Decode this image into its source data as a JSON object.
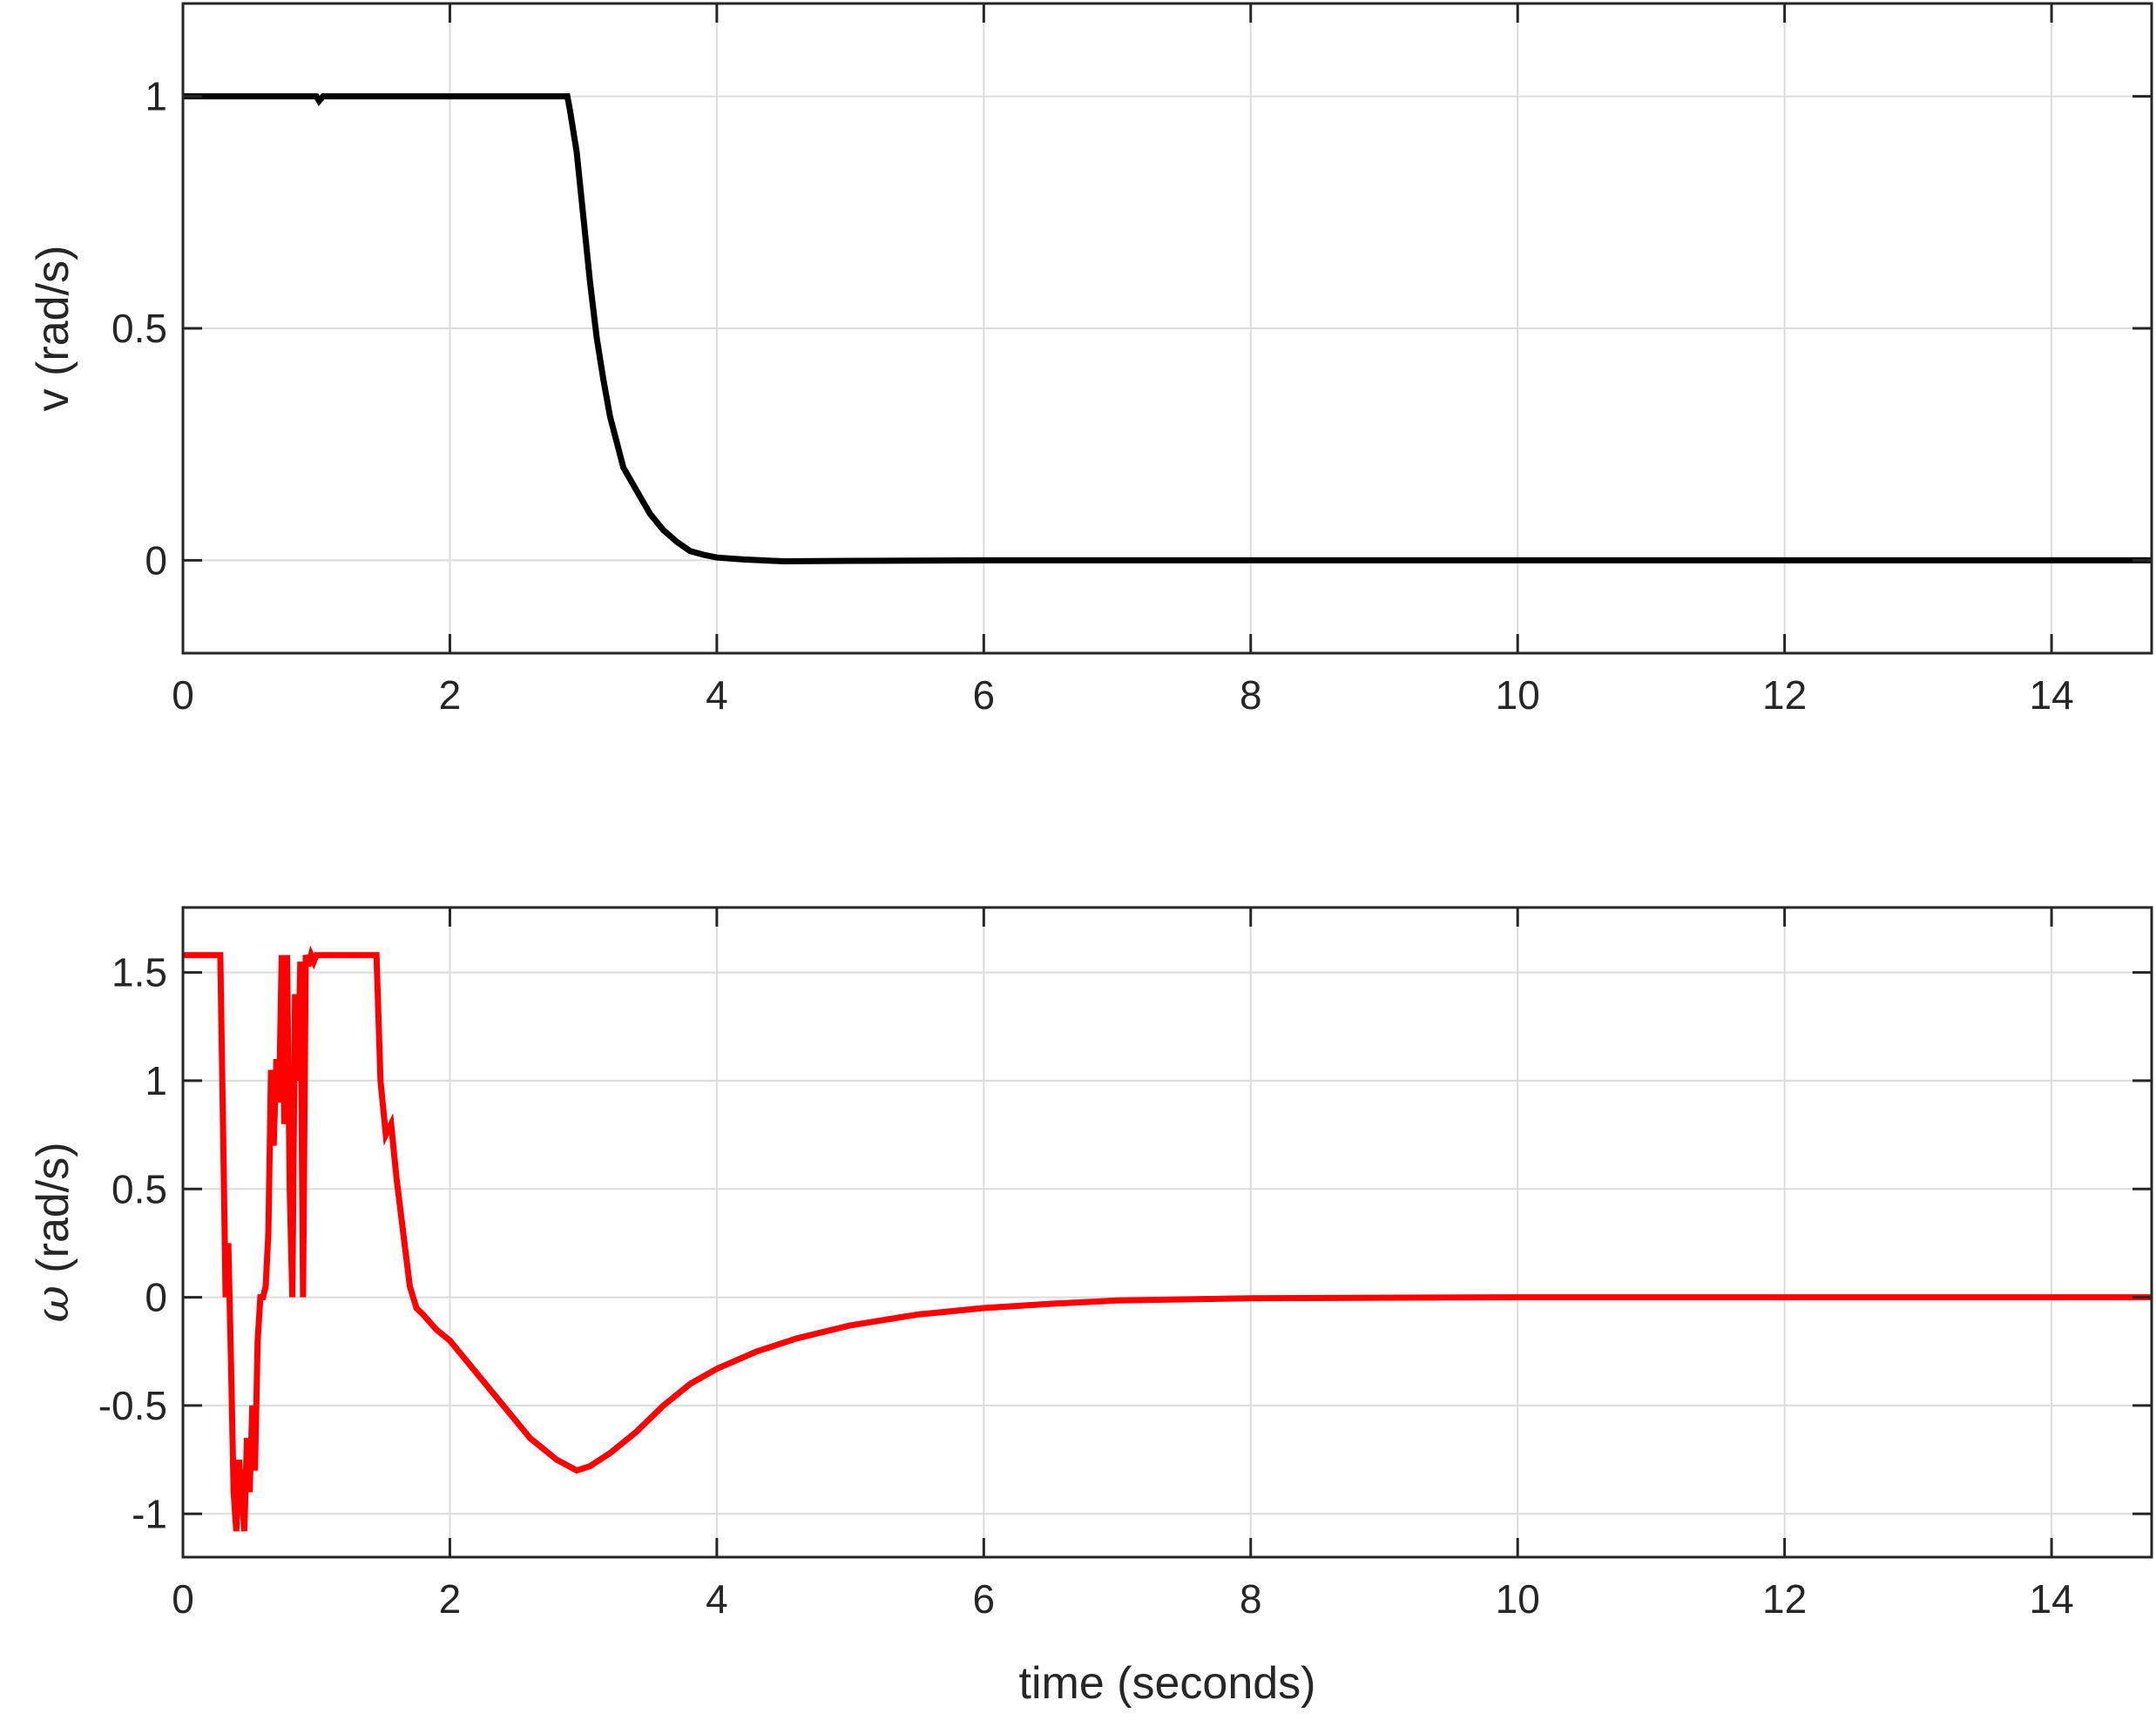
{
  "chart_data": [
    {
      "type": "line",
      "title": "",
      "xlabel": "",
      "ylabel": "v (rad/s)",
      "xlim": [
        0,
        14.75
      ],
      "ylim": [
        -0.2,
        1.2
      ],
      "xticks": [
        0,
        2,
        4,
        6,
        8,
        10,
        12,
        14
      ],
      "xtick_labels": [
        "0",
        "2",
        "4",
        "6",
        "8",
        "10",
        "12",
        "14"
      ],
      "yticks": [
        0,
        0.5,
        1
      ],
      "ytick_labels": [
        "0",
        "0.5",
        "1"
      ],
      "grid": true,
      "color": "#000000",
      "series": [
        {
          "x": [
            0,
            1.0,
            1.02,
            1.05,
            2.88,
            2.9,
            2.95,
            3.0,
            3.05,
            3.1,
            3.15,
            3.2,
            3.3,
            3.4,
            3.5,
            3.6,
            3.7,
            3.8,
            3.9,
            4.0,
            4.2,
            4.5,
            5.0,
            6.0,
            8.0,
            10.0,
            12.0,
            14.75
          ],
          "y": [
            1.0,
            1.0,
            0.99,
            1.0,
            1.0,
            0.97,
            0.88,
            0.74,
            0.6,
            0.48,
            0.39,
            0.31,
            0.2,
            0.15,
            0.1,
            0.065,
            0.04,
            0.02,
            0.012,
            0.006,
            0.002,
            -0.002,
            -0.001,
            0.0,
            0.0,
            0.0,
            0.0,
            0.0
          ]
        }
      ]
    },
    {
      "type": "line",
      "title": "",
      "xlabel": "time (seconds)",
      "ylabel_symbol": "ω",
      "ylabel_text": " (rad/s)",
      "xlim": [
        0,
        14.75
      ],
      "ylim": [
        -1.2,
        1.8
      ],
      "xticks": [
        0,
        2,
        4,
        6,
        8,
        10,
        12,
        14
      ],
      "xtick_labels": [
        "0",
        "2",
        "4",
        "6",
        "8",
        "10",
        "12",
        "14"
      ],
      "yticks": [
        -1,
        -0.5,
        0,
        0.5,
        1,
        1.5
      ],
      "ytick_labels": [
        "-1",
        "-0.5",
        "0",
        "0.5",
        "1",
        "1.5"
      ],
      "grid": true,
      "color": "#ff0000",
      "series": [
        {
          "x": [
            0,
            0.28,
            0.29,
            0.3,
            0.31,
            0.32,
            0.34,
            0.36,
            0.38,
            0.4,
            0.42,
            0.44,
            0.46,
            0.48,
            0.5,
            0.52,
            0.54,
            0.56,
            0.58,
            0.6,
            0.62,
            0.64,
            0.66,
            0.68,
            0.7,
            0.72,
            0.74,
            0.76,
            0.78,
            0.8,
            0.82,
            0.84,
            0.86,
            0.88,
            0.9,
            0.92,
            0.94,
            0.96,
            0.98,
            1.0,
            1.05,
            1.1,
            1.2,
            1.3,
            1.45,
            1.48,
            1.52,
            1.56,
            1.6,
            1.65,
            1.7,
            1.75,
            1.8,
            1.9,
            2.0,
            2.2,
            2.4,
            2.6,
            2.8,
            2.95,
            3.05,
            3.2,
            3.4,
            3.6,
            3.8,
            4.0,
            4.3,
            4.6,
            5.0,
            5.5,
            6.0,
            6.5,
            7.0,
            8.0,
            9.0,
            10.0,
            12.0,
            14.75
          ],
          "y": [
            1.58,
            1.58,
            1.2,
            0.8,
            0.4,
            0.0,
            0.25,
            -0.3,
            -0.9,
            -1.08,
            -0.75,
            -0.9,
            -1.08,
            -0.65,
            -0.9,
            -0.5,
            -0.8,
            -0.2,
            0.0,
            0.0,
            0.05,
            0.3,
            1.05,
            0.7,
            1.1,
            0.9,
            1.58,
            0.8,
            1.58,
            0.5,
            0.0,
            1.4,
            1.0,
            1.55,
            0.0,
            1.58,
            1.53,
            1.58,
            1.55,
            1.58,
            1.58,
            1.58,
            1.58,
            1.58,
            1.58,
            1.0,
            0.75,
            0.8,
            0.55,
            0.3,
            0.05,
            -0.05,
            -0.08,
            -0.15,
            -0.2,
            -0.35,
            -0.5,
            -0.65,
            -0.75,
            -0.8,
            -0.78,
            -0.72,
            -0.62,
            -0.5,
            -0.4,
            -0.33,
            -0.25,
            -0.19,
            -0.13,
            -0.08,
            -0.05,
            -0.03,
            -0.015,
            -0.005,
            -0.002,
            0.0,
            0.0,
            0.0
          ]
        }
      ]
    }
  ]
}
